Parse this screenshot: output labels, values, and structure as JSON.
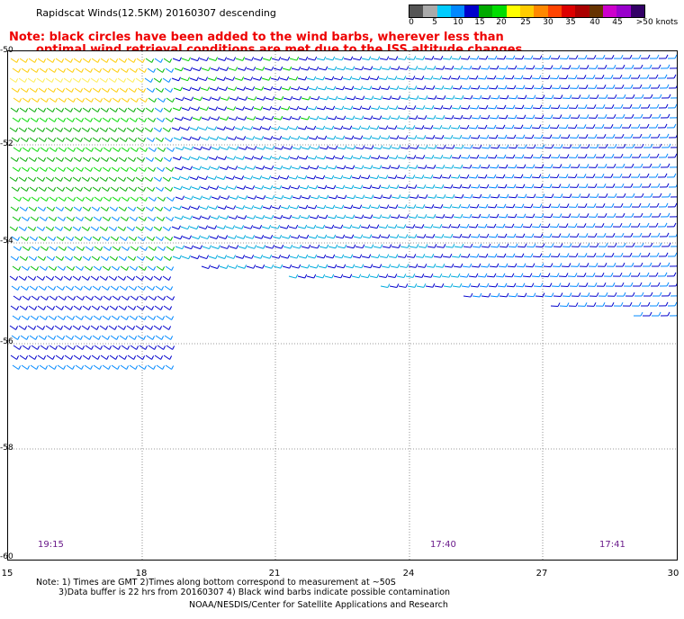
{
  "title": "Rapidscat Winds(12.5KM) 20160307 descending",
  "note_line1": "Note: black circles have been added to the wind barbs, wherever less than",
  "note_line2": "optimal wind retrieval conditions are met due to the ISS altitude changes.",
  "color_scale": {
    "colors": [
      "#555555",
      "#aaaaaa",
      "#00ccff",
      "#0088ff",
      "#0000cc",
      "#00aa00",
      "#00dd00",
      "#ffff00",
      "#ffcc00",
      "#ff8800",
      "#ff4400",
      "#dd0000",
      "#aa0000",
      "#663300",
      "#cc00cc",
      "#9900cc",
      "#330066"
    ],
    "labels": [
      "0",
      "5",
      "10",
      "15",
      "20",
      "25",
      "30",
      "35",
      "40",
      "45",
      ">50 knots"
    ]
  },
  "axes": {
    "x_ticks": [
      "15",
      "18",
      "21",
      "24",
      "27",
      "30"
    ],
    "y_ticks": [
      "-50",
      "-52",
      "-54",
      "-56",
      "-58",
      "-60"
    ]
  },
  "times": [
    "19:15",
    "17:40",
    "17:41"
  ],
  "footer": {
    "line1": "Note: 1) Times are GMT 2)Times along bottom correspond to measurement at ~50S",
    "line2": "3)Data buffer is 22 hrs from 20160307 4) Black wind barbs indicate possible contamination",
    "credit": "NOAA/NESDIS/Center for Satellite Applications and Research"
  }
}
